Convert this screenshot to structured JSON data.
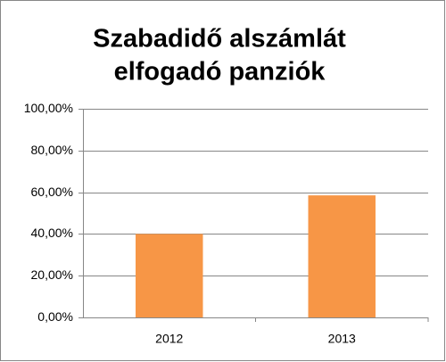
{
  "chart_data": {
    "type": "bar",
    "title": [
      "Szabadidő alszámlát",
      "elfogadó panziók"
    ],
    "categories": [
      "2012",
      "2013"
    ],
    "values": [
      40,
      58.5
    ],
    "color": "#f79646",
    "ylim": [
      0,
      100
    ],
    "yticks": [
      {
        "value": 0,
        "label": "0,00%"
      },
      {
        "value": 20,
        "label": "20,00%"
      },
      {
        "value": 40,
        "label": "40,00%"
      },
      {
        "value": 60,
        "label": "60,00%"
      },
      {
        "value": 80,
        "label": "80,00%"
      },
      {
        "value": 100,
        "label": "100,00%"
      }
    ],
    "grid": true
  }
}
